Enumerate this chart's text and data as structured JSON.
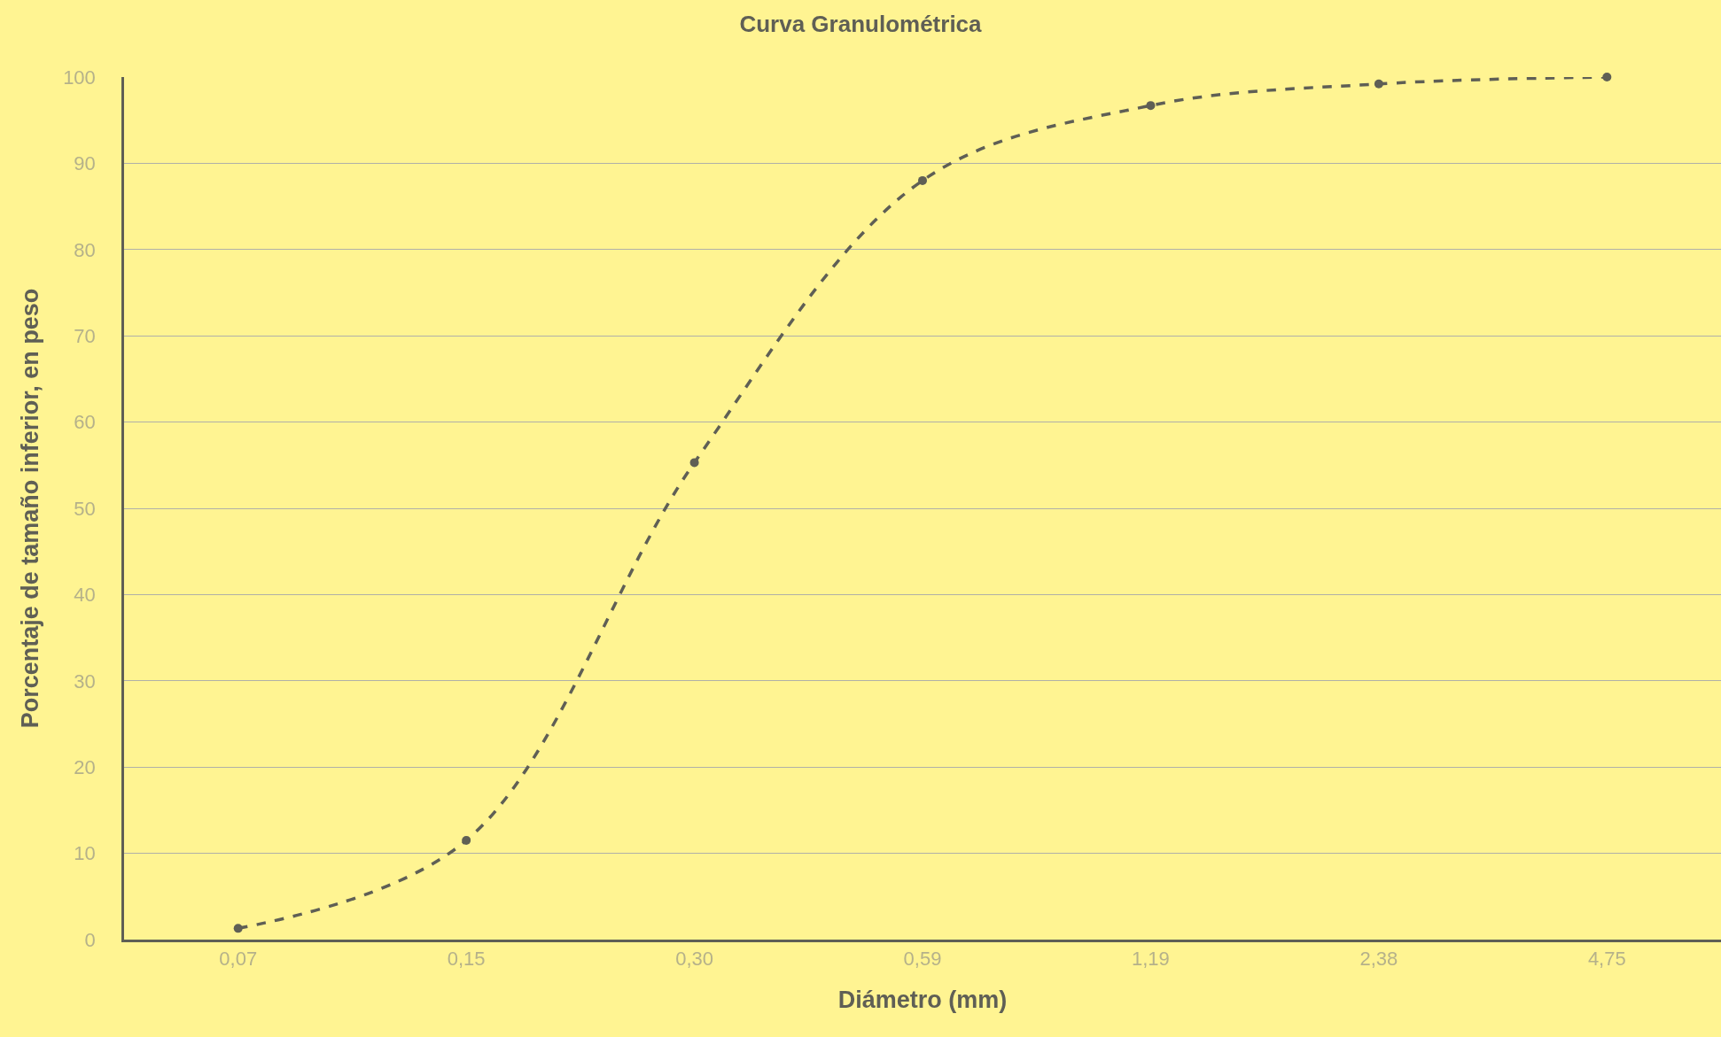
{
  "chart_data": {
    "type": "line",
    "title": "Curva Granulométrica",
    "xlabel": "Diámetro (mm)",
    "ylabel": "Porcentaje de tamaño inferior, en peso",
    "categories": [
      "0,07",
      "0,15",
      "0,30",
      "0,59",
      "1,19",
      "2,38",
      "4,75"
    ],
    "series": [
      {
        "color": "#5f5f55",
        "values": [
          1.3,
          11.5,
          55.3,
          88.0,
          96.7,
          99.2,
          100.0
        ]
      }
    ],
    "ylim": [
      0,
      100
    ],
    "yticks": [
      0,
      10,
      20,
      30,
      40,
      50,
      60,
      70,
      80,
      90,
      100
    ],
    "grid": "y",
    "marker": "circle",
    "line_style": "dashed"
  }
}
